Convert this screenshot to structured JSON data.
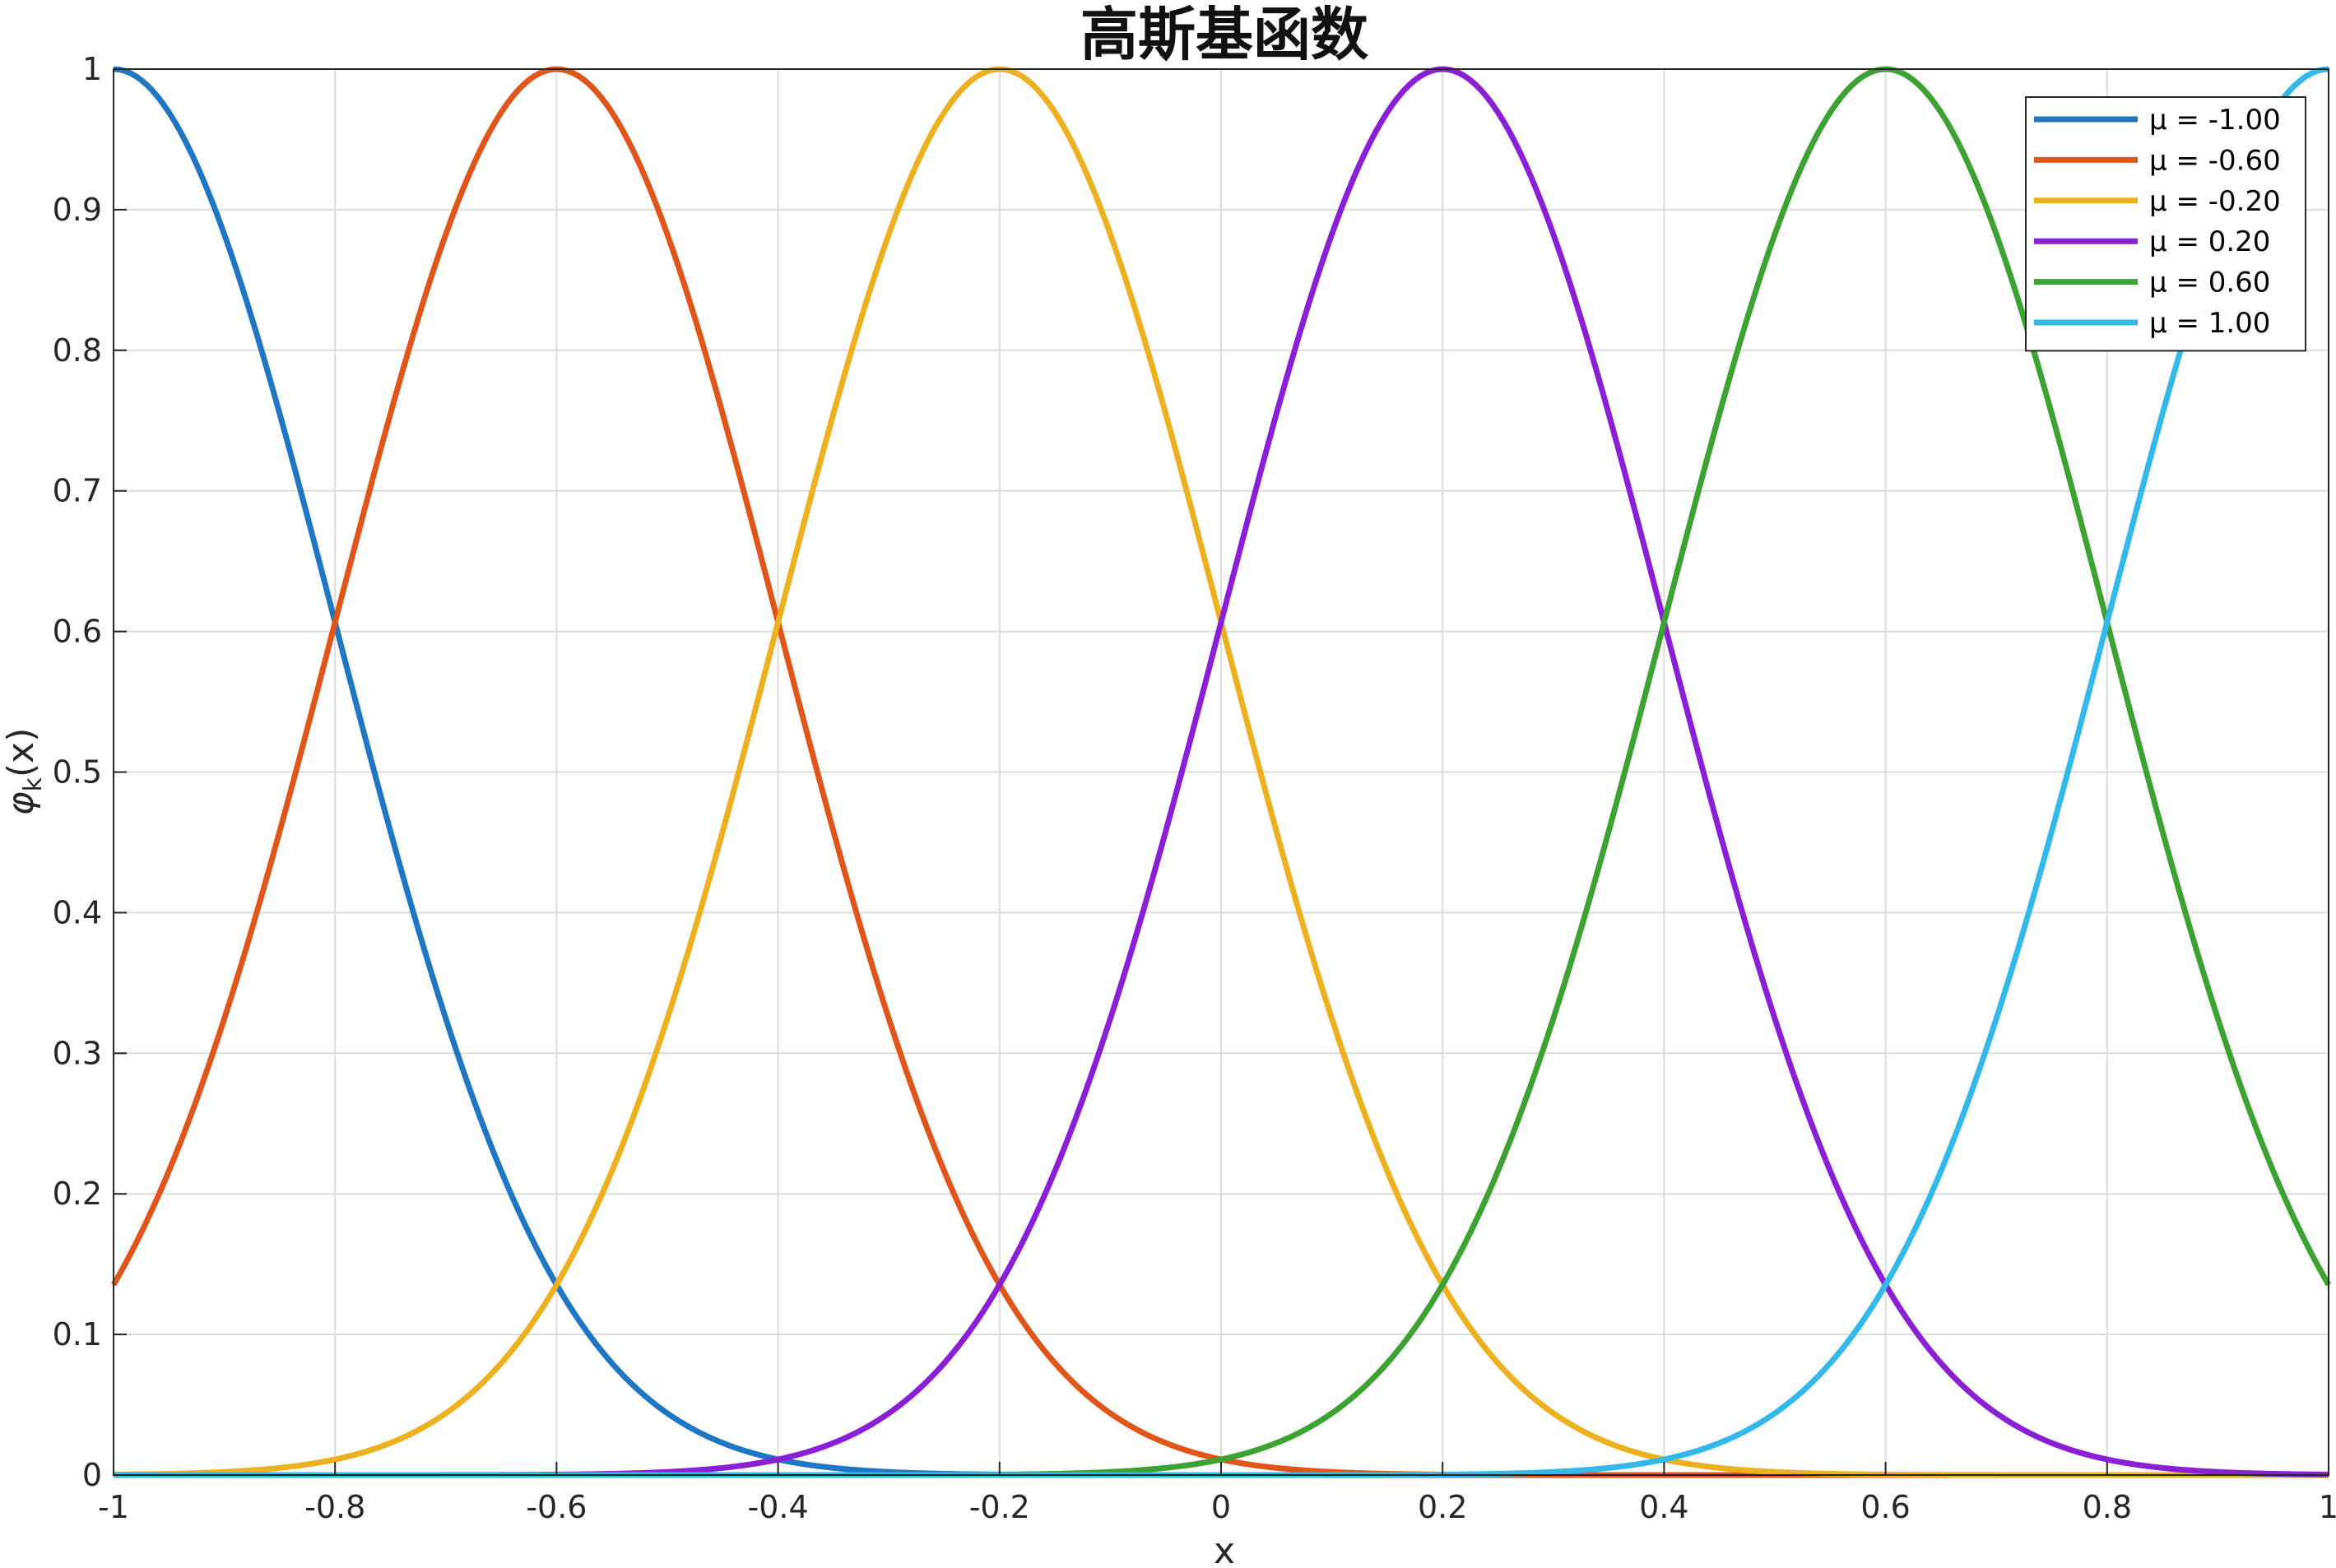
{
  "chart_data": {
    "type": "line",
    "title": "高斯基函数",
    "xlabel": "x",
    "ylabel": "φk(x)",
    "xlim": [
      -1,
      1
    ],
    "ylim": [
      0,
      1
    ],
    "grid": true,
    "legend_position": "top-right",
    "width": 0.2,
    "x_ticks": [
      -1,
      -0.8,
      -0.6,
      -0.4,
      -0.2,
      0,
      0.2,
      0.4,
      0.6,
      0.8,
      1
    ],
    "x_tick_labels": [
      "-1",
      "-0.8",
      "-0.6",
      "-0.4",
      "-0.2",
      "0",
      "0.2",
      "0.4",
      "0.6",
      "0.8",
      "1"
    ],
    "y_ticks": [
      0,
      0.1,
      0.2,
      0.3,
      0.4,
      0.5,
      0.6,
      0.7,
      0.8,
      0.9,
      1
    ],
    "y_tick_labels": [
      "0",
      "0.1",
      "0.2",
      "0.3",
      "0.4",
      "0.5",
      "0.6",
      "0.7",
      "0.8",
      "0.9",
      "1"
    ],
    "series": [
      {
        "name": "μ = -1.00",
        "mu": -1.0,
        "color": "#0072BD"
      },
      {
        "name": "μ = -0.60",
        "mu": -0.6,
        "color": "#D95319"
      },
      {
        "name": "μ = -0.20",
        "mu": -0.2,
        "color": "#EDB120"
      },
      {
        "name": "μ = 0.20",
        "mu": 0.2,
        "color": "#7E2F8E"
      },
      {
        "name": "μ = 0.60",
        "mu": 0.6,
        "color": "#77AC30"
      },
      {
        "name": "μ = 1.00",
        "mu": 1.0,
        "color": "#4DBEEE"
      }
    ],
    "series_display_colors": [
      "#1f77c4",
      "#e0561a",
      "#edb120",
      "#8a1fd6",
      "#3ca332",
      "#33b8ea"
    ]
  }
}
